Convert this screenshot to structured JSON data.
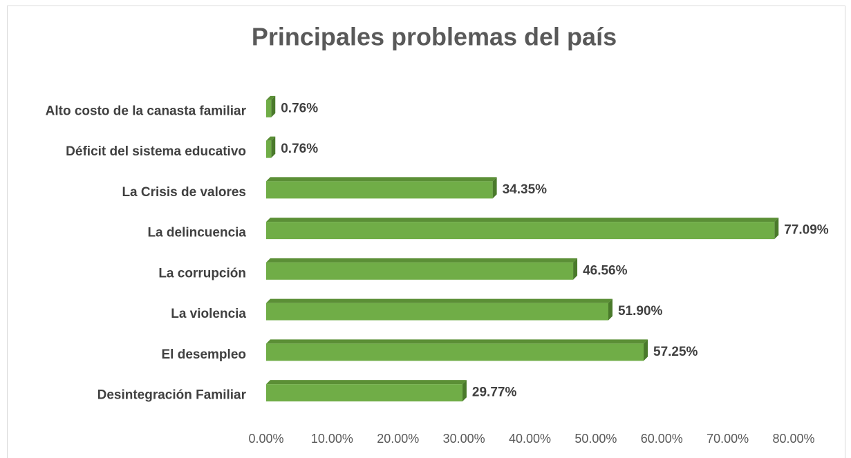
{
  "chart_data": {
    "type": "bar",
    "orientation": "horizontal",
    "title": "Principales problemas del país",
    "categories": [
      "Alto costo de la canasta familiar",
      "Déficit del sistema educativo",
      "La Crisis de valores",
      "La delincuencia",
      "La corrupción",
      "La violencia",
      "El desempleo",
      "Desintegración Familiar"
    ],
    "values": [
      0.76,
      0.76,
      34.35,
      77.09,
      46.56,
      51.9,
      57.25,
      29.77
    ],
    "value_labels": [
      "0.76%",
      "0.76%",
      "34.35%",
      "77.09%",
      "46.56%",
      "51.90%",
      "57.25%",
      "29.77%"
    ],
    "color": "#70ad47",
    "xlim": [
      0,
      80
    ],
    "xticks": [
      {
        "value": 0,
        "label": "0.00%"
      },
      {
        "value": 10,
        "label": "10.00%"
      },
      {
        "value": 20,
        "label": "20.00%"
      },
      {
        "value": 30,
        "label": "30.00%"
      },
      {
        "value": 40,
        "label": "40.00%"
      },
      {
        "value": 50,
        "label": "50.00%"
      },
      {
        "value": 60,
        "label": "60.00%"
      },
      {
        "value": 70,
        "label": "70.00%"
      },
      {
        "value": 80,
        "label": "80.00%"
      }
    ],
    "grid": false
  }
}
